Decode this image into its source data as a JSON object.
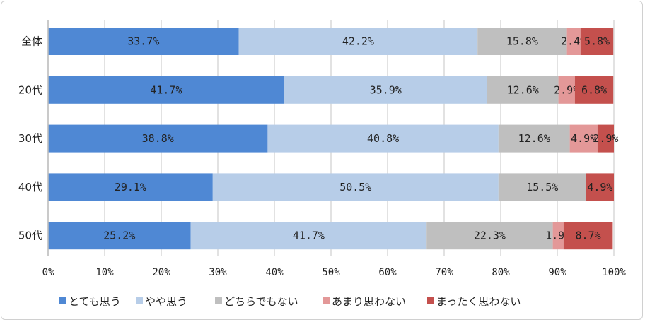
{
  "chart_data": {
    "type": "bar",
    "orientation": "horizontal",
    "stacked": true,
    "categories": [
      "全体",
      "20代",
      "30代",
      "40代",
      "50代"
    ],
    "series": [
      {
        "name": "とても思う",
        "color": "#4f88d4",
        "values": [
          33.7,
          41.7,
          38.8,
          29.1,
          25.2
        ]
      },
      {
        "name": "やや思う",
        "color": "#b7cde8",
        "values": [
          42.2,
          35.9,
          40.8,
          50.5,
          41.7
        ]
      },
      {
        "name": "どちらでもない",
        "color": "#bfbfbf",
        "values": [
          15.8,
          12.6,
          12.6,
          15.5,
          22.3
        ]
      },
      {
        "name": "あまり思わない",
        "color": "#e39898",
        "values": [
          2.4,
          2.9,
          4.9,
          0,
          1.9
        ]
      },
      {
        "name": "まったく思わない",
        "color": "#c4504d",
        "values": [
          5.8,
          6.8,
          2.9,
          4.9,
          8.7
        ]
      }
    ],
    "xlim": [
      0,
      100
    ],
    "xticks": [
      "0%",
      "10%",
      "20%",
      "30%",
      "40%",
      "50%",
      "60%",
      "70%",
      "80%",
      "90%",
      "100%"
    ],
    "data_label_format": "percent, 1 decimal",
    "grid": "vertical",
    "legend": "bottom"
  }
}
